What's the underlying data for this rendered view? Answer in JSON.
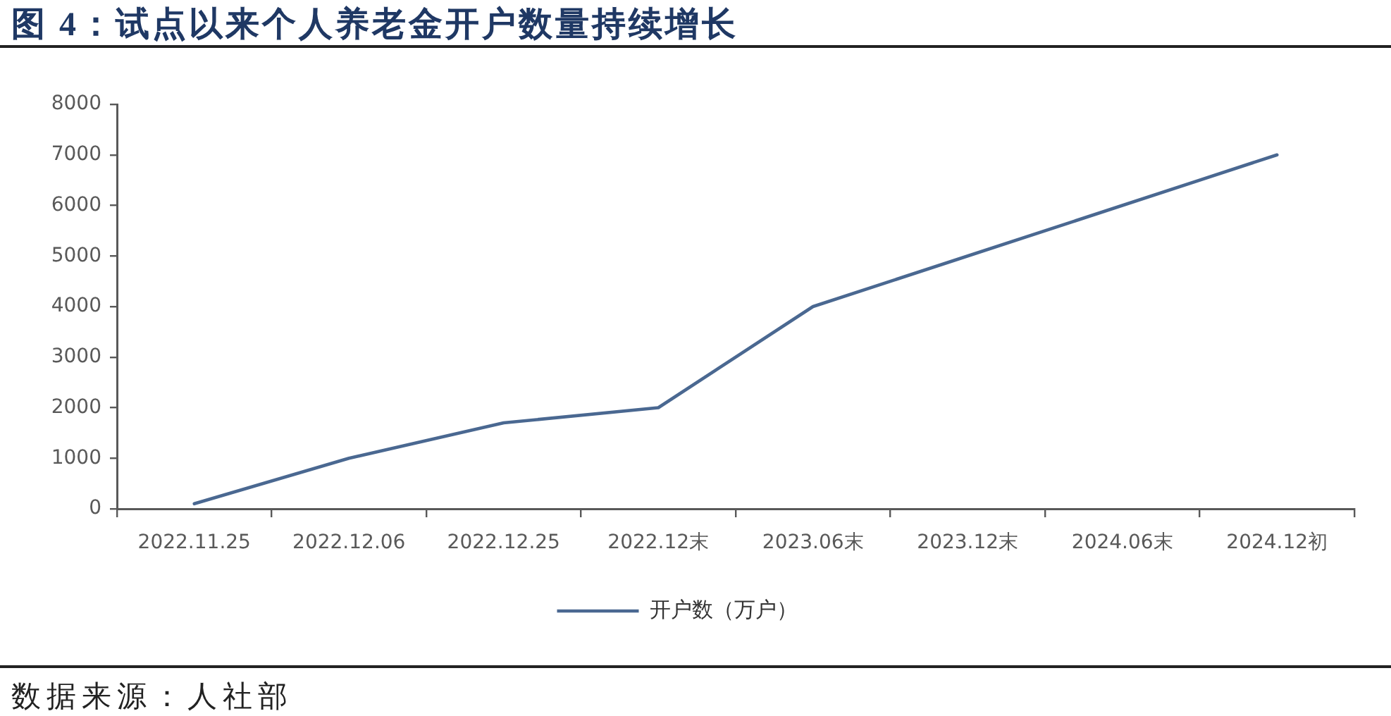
{
  "chart_data": {
    "type": "line",
    "title": "图 4：试点以来个人养老金开户数量持续增长",
    "categories": [
      "2022.11.25",
      "2022.12.06",
      "2022.12.25",
      "2022.12末",
      "2023.06末",
      "2023.12末",
      "2024.06末",
      "2024.12初"
    ],
    "series": [
      {
        "name": "开户数（万户）",
        "color": "#4a6891",
        "values": [
          100,
          1000,
          1700,
          2000,
          4000,
          5000,
          6000,
          7000
        ]
      }
    ],
    "ylim": [
      0,
      8000
    ],
    "yticks": [
      0,
      1000,
      2000,
      3000,
      4000,
      5000,
      6000,
      7000,
      8000
    ],
    "grid": false,
    "legend": "bottom",
    "marker": "none",
    "line_style": "solid",
    "annotations": [
      "数据来源：人社部"
    ]
  }
}
